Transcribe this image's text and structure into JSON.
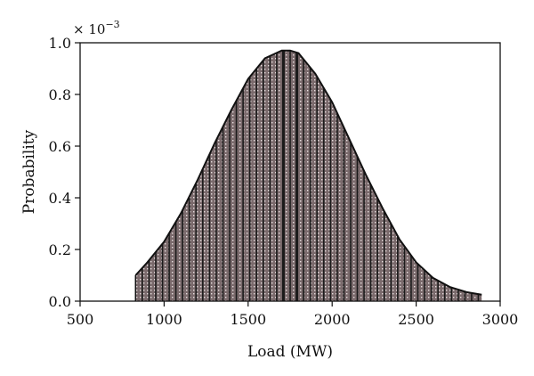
{
  "chart_data": {
    "type": "area",
    "title": "",
    "xlabel": "Load (MW)",
    "ylabel": "Probability",
    "y_scale_note": "× 10",
    "y_scale_exponent": "−3",
    "xlim": [
      500,
      3000
    ],
    "ylim": [
      0,
      1.0
    ],
    "x_ticks": [
      "500",
      "1000",
      "1500",
      "2000",
      "2500",
      "3000"
    ],
    "y_ticks": [
      "0.0",
      "0.2",
      "0.4",
      "0.6",
      "0.8",
      "1.0"
    ],
    "grid": false,
    "legend": "none",
    "series": [
      {
        "x": [
          830,
          900,
          1000,
          1100,
          1200,
          1300,
          1400,
          1500,
          1600,
          1700,
          1750,
          1800,
          1900,
          2000,
          2100,
          2200,
          2300,
          2400,
          2500,
          2600,
          2700,
          2800,
          2890
        ],
        "y": [
          0.1,
          0.15,
          0.23,
          0.34,
          0.47,
          0.61,
          0.74,
          0.86,
          0.94,
          0.97,
          0.97,
          0.96,
          0.88,
          0.77,
          0.63,
          0.49,
          0.36,
          0.24,
          0.15,
          0.09,
          0.055,
          0.035,
          0.025
        ]
      }
    ],
    "colors": {
      "fill": "#7a6a6c",
      "outline": "#111111",
      "stripe": "#1a1a1a"
    }
  }
}
